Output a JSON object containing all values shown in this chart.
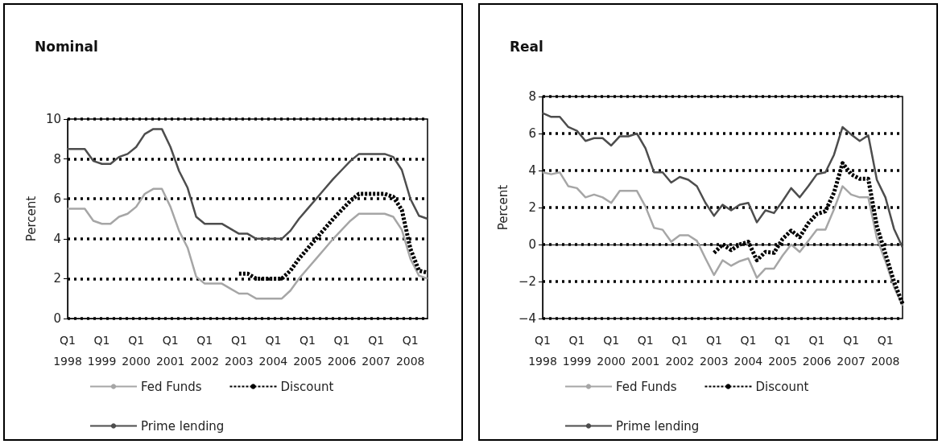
{
  "chart_data": [
    {
      "type": "line",
      "title": "Nominal",
      "ylabel": "Percent",
      "categories": [
        "Q1\n1998",
        null,
        null,
        null,
        "Q1\n1999",
        null,
        null,
        null,
        "Q1\n2000",
        null,
        null,
        null,
        "Q1\n2001",
        null,
        null,
        null,
        "Q1\n2002",
        null,
        null,
        null,
        "Q1\n2003",
        null,
        null,
        null,
        "Q1\n2004",
        null,
        null,
        null,
        "Q1\n2005",
        null,
        null,
        null,
        "Q1\n2006",
        null,
        null,
        null,
        "Q1\n2007",
        null,
        null,
        null,
        "Q1\n2008",
        null,
        null
      ],
      "series": [
        {
          "name": "Fed Funds",
          "color": "#a6a6a6",
          "line_style": "solid",
          "values": [
            5.5,
            5.5,
            5.5,
            4.9,
            4.75,
            4.75,
            5.1,
            5.25,
            5.6,
            6.25,
            6.5,
            6.5,
            5.6,
            4.4,
            3.55,
            2.1,
            1.75,
            1.75,
            1.75,
            1.5,
            1.25,
            1.25,
            1.0,
            1.0,
            1.0,
            1.0,
            1.4,
            2.0,
            2.5,
            3.0,
            3.5,
            4.0,
            4.45,
            4.9,
            5.25,
            5.25,
            5.25,
            5.25,
            5.1,
            4.45,
            3.0,
            2.15,
            2.0
          ]
        },
        {
          "name": "Discount",
          "color": "#000000",
          "line_style": "dashed",
          "values": [
            null,
            null,
            null,
            null,
            null,
            null,
            null,
            null,
            null,
            null,
            null,
            null,
            null,
            null,
            null,
            null,
            null,
            null,
            null,
            null,
            2.25,
            2.25,
            2.0,
            2.0,
            2.0,
            2.0,
            2.4,
            3.0,
            3.5,
            4.0,
            4.5,
            5.0,
            5.45,
            5.9,
            6.25,
            6.25,
            6.25,
            6.25,
            6.1,
            5.45,
            3.5,
            2.4,
            2.3
          ]
        },
        {
          "name": "Prime lending",
          "color": "#4d4d4d",
          "line_style": "solid",
          "values": [
            8.5,
            8.5,
            8.5,
            7.9,
            7.75,
            7.75,
            8.1,
            8.25,
            8.6,
            9.25,
            9.5,
            9.5,
            8.6,
            7.4,
            6.55,
            5.1,
            4.75,
            4.75,
            4.75,
            4.5,
            4.25,
            4.25,
            4.0,
            4.0,
            4.0,
            4.0,
            4.4,
            5.0,
            5.5,
            6.0,
            6.5,
            7.0,
            7.45,
            7.9,
            8.25,
            8.25,
            8.25,
            8.25,
            8.1,
            7.45,
            6.0,
            5.15,
            5.0
          ]
        }
      ],
      "ylim": [
        0,
        10
      ],
      "yticks": [
        0,
        2,
        4,
        6,
        8,
        10
      ],
      "grid": "y",
      "legend": "bottom",
      "marker": "none"
    },
    {
      "type": "line",
      "title": "Real",
      "ylabel": "Percent",
      "categories": [
        "Q1\n1998",
        null,
        null,
        null,
        "Q1\n1999",
        null,
        null,
        null,
        "Q1\n2000",
        null,
        null,
        null,
        "Q1\n2001",
        null,
        null,
        null,
        "Q1\n2002",
        null,
        null,
        null,
        "Q1\n2003",
        null,
        null,
        null,
        "Q1\n2004",
        null,
        null,
        null,
        "Q1\n2005",
        null,
        null,
        null,
        "Q1\n2006",
        null,
        null,
        null,
        "Q1\n2007",
        null,
        null,
        null,
        "Q1\n2008",
        null,
        null
      ],
      "series": [
        {
          "name": "Fed Funds",
          "color": "#a6a6a6",
          "line_style": "solid",
          "values": [
            3.9,
            3.8,
            3.9,
            3.15,
            3.05,
            2.55,
            2.7,
            2.55,
            2.25,
            2.9,
            2.9,
            2.9,
            2.05,
            0.9,
            0.8,
            0.15,
            0.5,
            0.5,
            0.2,
            -0.75,
            -1.65,
            -0.85,
            -1.15,
            -0.9,
            -0.75,
            -1.8,
            -1.3,
            -1.3,
            -0.6,
            0.0,
            -0.4,
            0.2,
            0.8,
            0.8,
            1.9,
            3.15,
            2.7,
            2.55,
            2.55,
            0.35,
            -0.9,
            -2.3,
            -3.3
          ]
        },
        {
          "name": "Discount",
          "color": "#000000",
          "line_style": "dashed",
          "values": [
            null,
            null,
            null,
            null,
            null,
            null,
            null,
            null,
            null,
            null,
            null,
            null,
            null,
            null,
            null,
            null,
            null,
            null,
            null,
            null,
            -0.45,
            0.0,
            -0.3,
            0.0,
            0.15,
            -0.85,
            -0.4,
            -0.45,
            0.3,
            0.75,
            0.4,
            1.15,
            1.65,
            1.8,
            2.8,
            4.4,
            3.8,
            3.55,
            3.55,
            1.0,
            -0.5,
            -2.0,
            -3.2
          ]
        },
        {
          "name": "Prime lending",
          "color": "#4d4d4d",
          "line_style": "solid",
          "values": [
            7.1,
            6.9,
            6.9,
            6.35,
            6.15,
            5.6,
            5.75,
            5.75,
            5.35,
            5.85,
            5.85,
            6.0,
            5.2,
            3.9,
            3.9,
            3.35,
            3.65,
            3.5,
            3.15,
            2.25,
            1.55,
            2.15,
            1.85,
            2.15,
            2.25,
            1.2,
            1.85,
            1.7,
            2.35,
            3.05,
            2.55,
            3.15,
            3.8,
            3.9,
            4.85,
            6.35,
            5.95,
            5.6,
            5.9,
            3.5,
            2.55,
            0.85,
            -0.15
          ]
        }
      ],
      "ylim": [
        -4,
        8
      ],
      "yticks": [
        {
          "value": -4,
          "label": "−4"
        },
        {
          "value": -2,
          "label": "−2"
        },
        0,
        2,
        4,
        6,
        8
      ],
      "grid": "y",
      "legend": "bottom",
      "marker": "none"
    }
  ]
}
